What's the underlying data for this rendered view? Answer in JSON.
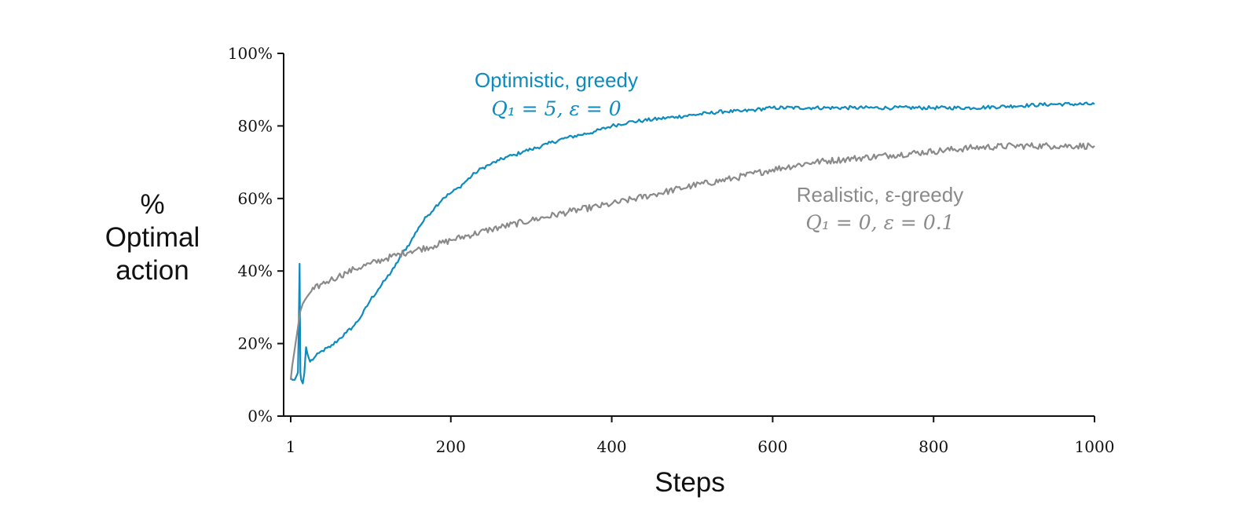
{
  "chart_data": {
    "type": "line",
    "title": "",
    "xlabel": "Steps",
    "ylabel_lines": [
      "%",
      "Optimal",
      "action"
    ],
    "xlim": [
      1,
      1000
    ],
    "ylim": [
      0,
      100
    ],
    "x_ticks": [
      1,
      200,
      400,
      600,
      800,
      1000
    ],
    "x_tick_labels": [
      "1",
      "200",
      "400",
      "600",
      "800",
      "1000"
    ],
    "y_ticks": [
      0,
      20,
      40,
      60,
      80,
      100
    ],
    "y_tick_labels": [
      "0%",
      "20%",
      "40%",
      "60%",
      "80%",
      "100%"
    ],
    "grid": false,
    "legend": "none",
    "series": [
      {
        "color": "#0d8bbf",
        "label_lines": [
          "Optimistic, greedy",
          "Q₁ = 5,  ε = 0"
        ],
        "noise": 0.5,
        "x": [
          1,
          3,
          6,
          8,
          10,
          11,
          12,
          13,
          14,
          16,
          18,
          20,
          22,
          25,
          30,
          40,
          50,
          60,
          70,
          80,
          90,
          100,
          110,
          120,
          130,
          140,
          150,
          160,
          170,
          180,
          190,
          200,
          210,
          220,
          230,
          240,
          250,
          260,
          270,
          280,
          290,
          300,
          320,
          340,
          360,
          380,
          400,
          420,
          440,
          460,
          480,
          500,
          520,
          540,
          560,
          580,
          600,
          650,
          700,
          750,
          800,
          850,
          900,
          950,
          1000
        ],
        "y": [
          10.5,
          10,
          10,
          11,
          12,
          24,
          42,
          12,
          10,
          9,
          12,
          19,
          17,
          15,
          16,
          18,
          19,
          21,
          23,
          25,
          28,
          32,
          35,
          38,
          41,
          45,
          48,
          52,
          55,
          57.5,
          60,
          61.5,
          63,
          65,
          67,
          68.5,
          69.5,
          70.5,
          71.5,
          72,
          73,
          73.5,
          75,
          76.5,
          77.5,
          78.5,
          80,
          81,
          81.5,
          82,
          82.5,
          83,
          83.5,
          84,
          84,
          84.5,
          85,
          85,
          85,
          85,
          85,
          85,
          85.5,
          86,
          86
        ]
      },
      {
        "color": "#8a8a8a",
        "label_lines": [
          "Realistic, ε-greedy",
          "Q₁ = 0,  ε = 0.1"
        ],
        "noise": 0.9,
        "x": [
          1,
          3,
          5,
          7,
          9,
          11,
          13,
          16,
          20,
          25,
          30,
          40,
          50,
          60,
          70,
          80,
          100,
          120,
          150,
          180,
          200,
          250,
          300,
          350,
          400,
          450,
          500,
          550,
          600,
          650,
          700,
          750,
          800,
          850,
          900,
          950,
          1000
        ],
        "y": [
          10,
          14,
          17,
          20,
          23,
          26,
          29,
          31,
          32.5,
          34,
          35,
          36.5,
          37.5,
          38.5,
          39.5,
          40.5,
          42,
          43.5,
          45.5,
          47,
          48.5,
          51.5,
          54,
          56.5,
          58.5,
          61,
          63.5,
          65.5,
          68,
          70,
          71,
          72,
          73,
          74,
          74.5,
          74.5,
          74.5
        ]
      }
    ],
    "annotations": [
      {
        "series": 0,
        "line1": "Optimistic, greedy",
        "line2": "Q₁ = 5,  ε = 0",
        "color": "#0d8bbf"
      },
      {
        "series": 1,
        "line1": "Realistic, ε-greedy",
        "line2": "Q₁ = 0,  ε = 0.1",
        "color": "#8a8a8a"
      }
    ]
  }
}
